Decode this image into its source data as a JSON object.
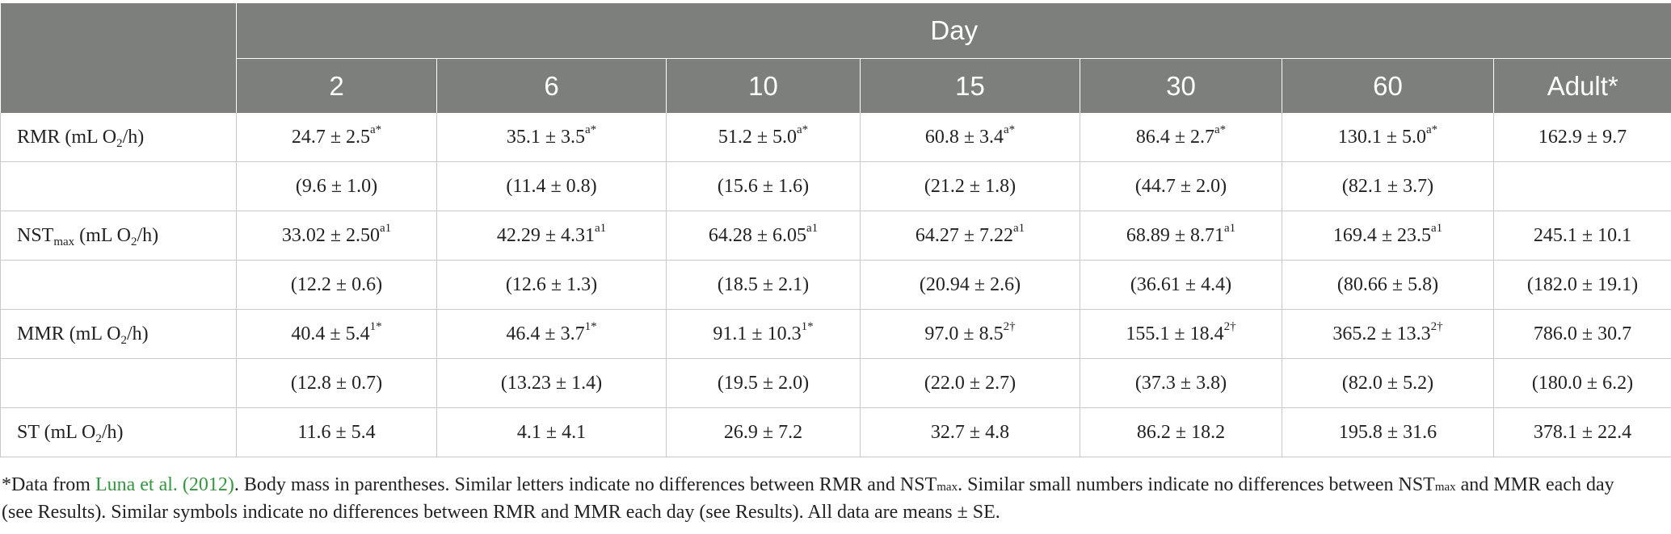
{
  "header": {
    "group_label": "Day",
    "columns": [
      "2",
      "6",
      "10",
      "15",
      "30",
      "60",
      "Adult*"
    ]
  },
  "rows": [
    {
      "label": {
        "main": "RMR (mL O",
        "sub": "2",
        "tail": "/h)"
      },
      "cells": [
        {
          "value": "24.7 ± 2.5",
          "sup": "a*"
        },
        {
          "value": "35.1 ± 3.5",
          "sup": "a*"
        },
        {
          "value": "51.2 ± 5.0",
          "sup": "a*"
        },
        {
          "value": "60.8 ± 3.4",
          "sup": "a*"
        },
        {
          "value": "86.4 ± 2.7",
          "sup": "a*"
        },
        {
          "value": "130.1 ± 5.0",
          "sup": "a*"
        },
        {
          "value": "162.9 ± 9.7",
          "sup": ""
        }
      ]
    },
    {
      "label": {
        "main": "",
        "sub": "",
        "tail": ""
      },
      "cells": [
        {
          "value": "(9.6 ± 1.0)",
          "sup": ""
        },
        {
          "value": "(11.4 ± 0.8)",
          "sup": ""
        },
        {
          "value": "(15.6 ± 1.6)",
          "sup": ""
        },
        {
          "value": "(21.2 ± 1.8)",
          "sup": ""
        },
        {
          "value": "(44.7 ± 2.0)",
          "sup": ""
        },
        {
          "value": "(82.1 ± 3.7)",
          "sup": ""
        },
        {
          "value": "",
          "sup": ""
        }
      ]
    },
    {
      "label": {
        "main": "NST",
        "sub": "max",
        "tail": " (mL O",
        "sub2": "2",
        "tail2": "/h)"
      },
      "cells": [
        {
          "value": "33.02 ± 2.50",
          "sup": "a1"
        },
        {
          "value": "42.29 ± 4.31",
          "sup": "a1"
        },
        {
          "value": "64.28 ± 6.05",
          "sup": "a1"
        },
        {
          "value": "64.27 ± 7.22",
          "sup": "a1"
        },
        {
          "value": "68.89 ± 8.71",
          "sup": "a1"
        },
        {
          "value": "169.4 ± 23.5",
          "sup": "a1"
        },
        {
          "value": "245.1 ± 10.1",
          "sup": ""
        }
      ]
    },
    {
      "label": {
        "main": "",
        "sub": "",
        "tail": ""
      },
      "cells": [
        {
          "value": "(12.2 ± 0.6)",
          "sup": ""
        },
        {
          "value": "(12.6 ± 1.3)",
          "sup": ""
        },
        {
          "value": "(18.5 ± 2.1)",
          "sup": ""
        },
        {
          "value": "(20.94 ± 2.6)",
          "sup": ""
        },
        {
          "value": "(36.61 ± 4.4)",
          "sup": ""
        },
        {
          "value": "(80.66 ± 5.8)",
          "sup": ""
        },
        {
          "value": "(182.0 ± 19.1)",
          "sup": ""
        }
      ]
    },
    {
      "label": {
        "main": "MMR (mL O",
        "sub": "2",
        "tail": "/h)"
      },
      "cells": [
        {
          "value": "40.4 ± 5.4",
          "sup": "1*"
        },
        {
          "value": "46.4 ± 3.7",
          "sup": "1*"
        },
        {
          "value": "91.1 ± 10.3",
          "sup": "1*"
        },
        {
          "value": "97.0 ± 8.5",
          "sup": "2†"
        },
        {
          "value": "155.1 ± 18.4",
          "sup": "2†"
        },
        {
          "value": "365.2 ± 13.3",
          "sup": "2†"
        },
        {
          "value": "786.0 ± 30.7",
          "sup": ""
        }
      ]
    },
    {
      "label": {
        "main": "",
        "sub": "",
        "tail": ""
      },
      "cells": [
        {
          "value": "(12.8 ± 0.7)",
          "sup": ""
        },
        {
          "value": "(13.23 ± 1.4)",
          "sup": ""
        },
        {
          "value": "(19.5 ± 2.0)",
          "sup": ""
        },
        {
          "value": "(22.0 ± 2.7)",
          "sup": ""
        },
        {
          "value": "(37.3 ± 3.8)",
          "sup": ""
        },
        {
          "value": "(82.0 ± 5.2)",
          "sup": ""
        },
        {
          "value": "(180.0 ± 6.2)",
          "sup": ""
        }
      ]
    },
    {
      "label": {
        "main": "ST (mL O",
        "sub": "2",
        "tail": "/h)"
      },
      "cells": [
        {
          "value": "11.6 ± 5.4",
          "sup": ""
        },
        {
          "value": "4.1 ± 4.1",
          "sup": ""
        },
        {
          "value": "26.9 ± 7.2",
          "sup": ""
        },
        {
          "value": "32.7 ± 4.8",
          "sup": ""
        },
        {
          "value": "86.2 ± 18.2",
          "sup": ""
        },
        {
          "value": "195.8 ± 31.6",
          "sup": ""
        },
        {
          "value": "378.1 ± 22.4",
          "sup": ""
        }
      ]
    }
  ],
  "footnote": {
    "lead": "*Data from ",
    "link": "Luna et al. (2012)",
    "p1": ". Body mass in parentheses. Similar letters indicate no differences between RMR and NST",
    "sub1": "max",
    "p2": ". Similar small numbers indicate no differences between NST",
    "sub2": "max",
    "p3": " and MMR each day (see Results). Similar symbols indicate no differences between RMR and MMR each day (see Results). All data are means ± SE."
  }
}
